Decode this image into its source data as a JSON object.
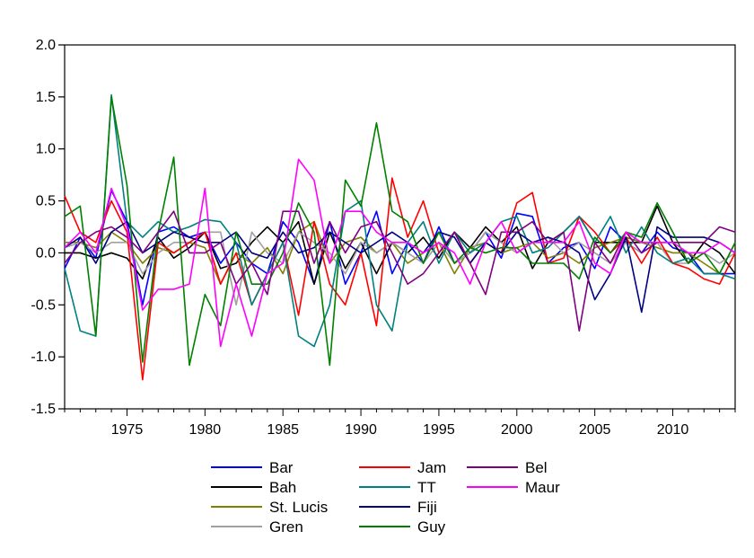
{
  "chart_data": {
    "type": "line",
    "title": "",
    "xlabel": "",
    "ylabel": "",
    "xlim": [
      1971,
      2014
    ],
    "ylim": [
      -1.5,
      2.0
    ],
    "x_ticks": [
      1975,
      1980,
      1985,
      1990,
      1995,
      2000,
      2005,
      2010
    ],
    "y_ticks": [
      2.0,
      1.5,
      1.0,
      0.5,
      0.0,
      -0.5,
      -1.0,
      -1.5
    ],
    "y_tick_labels": [
      "2.0",
      "1.5",
      "1.0",
      "0.5",
      "0.0",
      "-0.5",
      "-1.0",
      "-1.5"
    ],
    "grid": false,
    "legend_position": "bottom",
    "x": [
      1971,
      1972,
      1973,
      1974,
      1975,
      1976,
      1977,
      1978,
      1979,
      1980,
      1981,
      1982,
      1983,
      1984,
      1985,
      1986,
      1987,
      1988,
      1989,
      1990,
      1991,
      1992,
      1993,
      1994,
      1995,
      1996,
      1997,
      1998,
      1999,
      2000,
      2001,
      2002,
      2003,
      2004,
      2005,
      2006,
      2007,
      2008,
      2009,
      2010,
      2011,
      2012,
      2013,
      2014
    ],
    "series": [
      {
        "name": "Bar",
        "color": "#0000ff",
        "values": [
          -0.15,
          0.15,
          -0.05,
          0.6,
          0.3,
          -0.5,
          0.2,
          0.25,
          0.15,
          0.2,
          -0.1,
          0.1,
          -0.1,
          -0.2,
          0.3,
          0.1,
          -0.3,
          0.3,
          -0.3,
          0.0,
          0.4,
          -0.2,
          0.1,
          -0.1,
          0.25,
          -0.1,
          0.0,
          0.2,
          -0.05,
          0.38,
          0.35,
          -0.1,
          0.05,
          0.1,
          -0.15,
          0.25,
          0.1,
          0.0,
          0.2,
          0.05,
          0.0,
          -0.2,
          -0.2,
          -0.2
        ]
      },
      {
        "name": "Bah",
        "color": "#000000",
        "values": [
          0.0,
          0.0,
          -0.05,
          0.0,
          -0.05,
          -0.25,
          0.15,
          -0.05,
          0.05,
          0.2,
          -0.15,
          -0.1,
          0.1,
          0.25,
          0.1,
          0.3,
          -0.3,
          0.2,
          -0.15,
          0.1,
          -0.2,
          0.1,
          0.0,
          0.15,
          -0.05,
          0.2,
          0.05,
          0.25,
          0.1,
          0.25,
          -0.15,
          0.1,
          0.2,
          0.35,
          0.1,
          0.1,
          0.1,
          0.1,
          0.45,
          0.1,
          -0.1,
          0.1,
          0.0,
          -0.2
        ]
      },
      {
        "name": "St. Lucis",
        "color": "#808000",
        "values": [
          0.1,
          0.1,
          0.05,
          0.2,
          0.1,
          -0.1,
          0.05,
          0.0,
          0.1,
          0.05,
          -0.3,
          0.0,
          -0.1,
          0.05,
          -0.2,
          0.2,
          0.3,
          -0.1,
          0.1,
          0.15,
          0.0,
          0.1,
          -0.1,
          0.0,
          0.1,
          -0.2,
          0.05,
          0.1,
          0.0,
          0.05,
          0.1,
          -0.05,
          0.0,
          -0.1,
          0.05,
          0.1,
          0.15,
          0.1,
          0.05,
          0.0,
          0.0,
          -0.1,
          -0.2,
          0.1
        ]
      },
      {
        "name": "Gren",
        "color": "#a0a0a0",
        "values": [
          0.05,
          0.1,
          0.0,
          0.1,
          0.1,
          -0.2,
          0.0,
          0.1,
          0.1,
          0.2,
          0.2,
          -0.5,
          0.2,
          0.0,
          -0.1,
          0.2,
          0.1,
          0.0,
          -0.2,
          0.1,
          0.0,
          0.1,
          0.0,
          -0.1,
          0.1,
          -0.1,
          0.0,
          0.2,
          0.1,
          0.0,
          0.1,
          0.15,
          0.0,
          0.1,
          0.0,
          -0.1,
          0.1,
          0.0,
          0.1,
          -0.1,
          -0.1,
          0.0,
          -0.1,
          0.0
        ]
      },
      {
        "name": "Jam",
        "color": "#ff0000",
        "values": [
          0.55,
          0.2,
          0.1,
          0.5,
          0.2,
          -1.22,
          0.1,
          0.0,
          0.1,
          0.2,
          -0.3,
          0.0,
          -0.5,
          -0.2,
          0.1,
          -0.6,
          0.3,
          -0.3,
          -0.5,
          0.0,
          -0.7,
          0.72,
          0.15,
          0.5,
          0.0,
          0.2,
          -0.1,
          0.1,
          0.0,
          0.48,
          0.58,
          -0.1,
          -0.05,
          0.35,
          0.2,
          0.0,
          0.15,
          -0.1,
          0.15,
          -0.1,
          -0.15,
          -0.25,
          -0.3,
          0.0
        ]
      },
      {
        "name": "TT",
        "color": "#008080",
        "values": [
          -0.15,
          -0.75,
          -0.8,
          1.52,
          0.3,
          0.15,
          0.3,
          0.2,
          0.25,
          0.32,
          0.3,
          0.1,
          -0.5,
          -0.2,
          0.1,
          -0.8,
          -0.9,
          -0.5,
          0.4,
          0.5,
          -0.5,
          -0.75,
          0.1,
          0.3,
          -0.1,
          0.2,
          0.0,
          0.1,
          0.3,
          0.35,
          0.0,
          0.05,
          0.2,
          0.35,
          0.1,
          0.35,
          0.0,
          0.25,
          0.0,
          -0.1,
          -0.05,
          -0.2,
          -0.2,
          -0.25
        ]
      },
      {
        "name": "Fiji",
        "color": "#000080",
        "values": [
          0.05,
          0.15,
          -0.1,
          0.2,
          0.3,
          0.0,
          0.1,
          0.2,
          0.15,
          0.1,
          0.1,
          0.2,
          0.0,
          -0.05,
          0.2,
          0.0,
          0.05,
          0.2,
          0.1,
          0.0,
          0.1,
          0.2,
          0.1,
          0.0,
          0.2,
          0.15,
          -0.1,
          0.1,
          0.0,
          0.2,
          0.1,
          0.15,
          0.1,
          0.0,
          -0.45,
          -0.2,
          0.15,
          -0.57,
          0.25,
          0.15,
          0.15,
          0.15,
          0.1,
          0.0
        ]
      },
      {
        "name": "Guy",
        "color": "#008000",
        "values": [
          0.35,
          0.45,
          -0.8,
          1.5,
          0.65,
          -1.05,
          0.2,
          0.92,
          -1.08,
          -0.4,
          -0.7,
          0.2,
          -0.3,
          -0.3,
          0.0,
          0.48,
          0.2,
          -1.08,
          0.7,
          0.45,
          1.25,
          0.4,
          0.3,
          -0.1,
          0.2,
          -0.1,
          0.05,
          0.0,
          0.05,
          0.05,
          -0.1,
          -0.1,
          -0.1,
          -0.25,
          0.15,
          0.0,
          0.2,
          0.15,
          0.48,
          0.2,
          -0.1,
          0.0,
          -0.2,
          0.1
        ]
      },
      {
        "name": "Bel",
        "color": "#800080",
        "values": [
          -0.1,
          0.1,
          0.2,
          0.25,
          0.15,
          0.0,
          0.2,
          0.4,
          0.0,
          0.0,
          0.1,
          -0.3,
          -0.1,
          -0.4,
          0.4,
          0.4,
          -0.1,
          0.3,
          0.0,
          0.25,
          0.3,
          0.0,
          -0.3,
          -0.2,
          0.0,
          0.2,
          -0.1,
          -0.4,
          0.2,
          0.2,
          0.3,
          0.1,
          0.2,
          -0.75,
          0.1,
          -0.1,
          0.2,
          0.0,
          0.1,
          0.1,
          0.1,
          0.1,
          0.25,
          0.2
        ]
      },
      {
        "name": "Maur",
        "color": "#ff00ff",
        "values": [
          0.05,
          0.2,
          0.0,
          0.62,
          0.25,
          -0.55,
          -0.35,
          -0.35,
          -0.3,
          0.62,
          -0.9,
          -0.3,
          -0.8,
          -0.2,
          -0.1,
          0.9,
          0.7,
          -0.1,
          0.4,
          0.4,
          0.2,
          0.1,
          0.1,
          0.0,
          0.1,
          0.0,
          -0.3,
          0.1,
          0.3,
          0.0,
          0.1,
          0.1,
          0.1,
          0.3,
          -0.1,
          -0.2,
          0.2,
          0.1,
          0.1,
          0.1,
          0.0,
          0.0,
          0.1,
          0.0
        ]
      }
    ]
  }
}
